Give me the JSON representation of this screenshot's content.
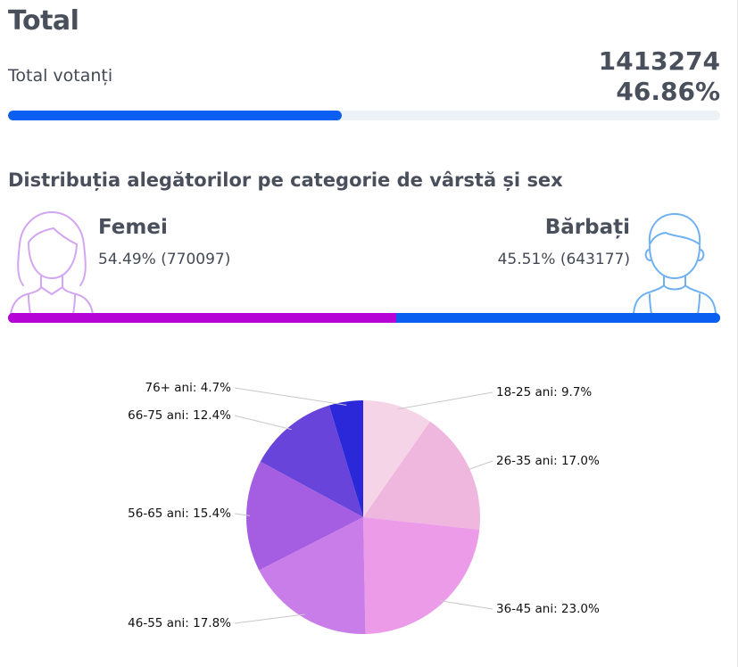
{
  "title": "Total",
  "turnout": {
    "label": "Total votanți",
    "count": "1413274",
    "percent_text": "46.86%",
    "percent_value": 46.86,
    "bar_color": "#0a5ff0",
    "track_color": "#edf2f7"
  },
  "distribution": {
    "title": "Distribuția alegătorilor pe categorie de vârstă și sex",
    "female": {
      "name": "Femei",
      "stat": "54.49% (770097)",
      "percent": 54.49,
      "color": "#b404d6",
      "icon": "female-avatar-icon"
    },
    "male": {
      "name": "Bărbați",
      "stat": "45.51% (643177)",
      "percent": 45.51,
      "color": "#0a5ff0",
      "icon": "male-avatar-icon"
    }
  },
  "chart_data": {
    "type": "pie",
    "title": "",
    "categories": [
      "18-25 ani",
      "26-35 ani",
      "36-45 ani",
      "46-55 ani",
      "56-65 ani",
      "66-75 ani",
      "76+ ani"
    ],
    "values": [
      9.7,
      17.0,
      23.0,
      17.8,
      15.4,
      12.4,
      4.7
    ],
    "labels": [
      "18-25 ani: 9.7%",
      "26-35 ani: 17.0%",
      "36-45 ani: 23.0%",
      "46-55 ani: 17.8%",
      "56-65 ani: 15.4%",
      "66-75 ani: 12.4%",
      "76+ ani: 4.7%"
    ],
    "colors": [
      "#f4d4e6",
      "#efb6de",
      "#ec9be8",
      "#c97de8",
      "#a55ee2",
      "#6944db",
      "#2b28da"
    ],
    "start": "top, clockwise",
    "legend": "none"
  }
}
